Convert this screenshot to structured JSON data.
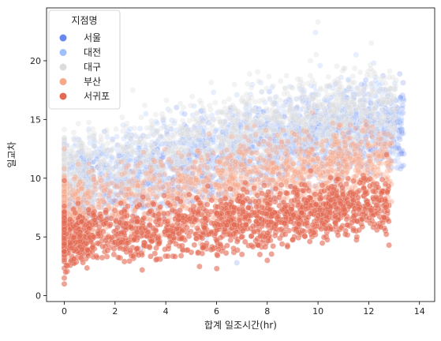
{
  "chart_data": {
    "type": "scatter",
    "title": "",
    "xlabel": "합계 일조시간(hr)",
    "ylabel": "일교차",
    "xlim": [
      -0.7,
      14.6
    ],
    "ylim": [
      -0.5,
      24.5
    ],
    "xticks": [
      0,
      2,
      4,
      6,
      8,
      10,
      12,
      14
    ],
    "yticks": [
      0,
      5,
      10,
      15,
      20
    ],
    "legend": {
      "title": "지점명",
      "placement": "top-left",
      "entries": [
        "서울",
        "대전",
        "대구",
        "부산",
        "서귀포"
      ]
    },
    "series": [
      {
        "name": "서울",
        "color": "#6788ee",
        "opacity": 0.25,
        "trend": {
          "x": [
            0,
            4,
            8,
            10,
            12,
            13.3
          ],
          "y": [
            8.5,
            10.5,
            12.5,
            13.5,
            14.5,
            14.0
          ]
        },
        "x_range": [
          0,
          13.4
        ],
        "spread": 2.6,
        "points": [
          [
            0,
            13.2
          ],
          [
            0.1,
            12.8
          ],
          [
            12.9,
            15.0
          ],
          [
            13.2,
            13.5
          ],
          [
            13.3,
            11.0
          ],
          [
            6.8,
            2.8
          ],
          [
            3.0,
            4.0
          ],
          [
            11.8,
            17.5
          ]
        ]
      },
      {
        "name": "대전",
        "color": "#a1c0ff",
        "opacity": 0.25,
        "trend": {
          "x": [
            0,
            4,
            8,
            10,
            12,
            13.2
          ],
          "y": [
            9.5,
            11.5,
            13.5,
            14.5,
            15.0,
            14.8
          ]
        },
        "x_range": [
          0,
          13.3
        ],
        "spread": 2.5,
        "points": [
          [
            9.9,
            22.4
          ],
          [
            11.5,
            20.5
          ],
          [
            12.2,
            19.8
          ],
          [
            13.0,
            16.8
          ],
          [
            13.3,
            15.5
          ],
          [
            5.6,
            4.8
          ]
        ]
      },
      {
        "name": "대구",
        "color": "#dddcdc",
        "opacity": 0.35,
        "trend": {
          "x": [
            0,
            4,
            8,
            10,
            12,
            13.0
          ],
          "y": [
            10.0,
            12.3,
            14.5,
            15.5,
            16.0,
            15.8
          ]
        },
        "x_range": [
          0,
          13.1
        ],
        "spread": 2.5,
        "points": [
          [
            10.0,
            23.3
          ],
          [
            12.1,
            21.5
          ],
          [
            9.7,
            20.0
          ],
          [
            2.7,
            17.5
          ],
          [
            13.0,
            17.0
          ]
        ]
      },
      {
        "name": "부산",
        "color": "#f7a889",
        "opacity": 0.4,
        "trend": {
          "x": [
            0,
            4,
            8,
            10,
            12,
            12.8
          ],
          "y": [
            7.0,
            8.5,
            10.3,
            11.0,
            11.5,
            11.2
          ]
        },
        "x_range": [
          0,
          12.9
        ],
        "spread": 2.3,
        "points": [
          [
            12.9,
            8.0
          ],
          [
            12.9,
            13.0
          ],
          [
            0.0,
            12.5
          ],
          [
            0.0,
            7.5
          ],
          [
            1.2,
            6.0
          ]
        ]
      },
      {
        "name": "서귀포",
        "color": "#e26952",
        "opacity": 0.6,
        "trend": {
          "x": [
            0,
            4,
            8,
            10,
            12,
            12.8
          ],
          "y": [
            4.8,
            5.6,
            6.6,
            7.3,
            7.8,
            7.6
          ]
        },
        "x_range": [
          0,
          12.8
        ],
        "spread": 1.7,
        "points": [
          [
            0.0,
            1.0
          ],
          [
            0.0,
            1.5
          ],
          [
            0.05,
            2.0
          ],
          [
            12.7,
            12.0
          ],
          [
            0.0,
            9.8
          ],
          [
            12.8,
            4.3
          ],
          [
            8.0,
            3.0
          ]
        ]
      }
    ]
  }
}
